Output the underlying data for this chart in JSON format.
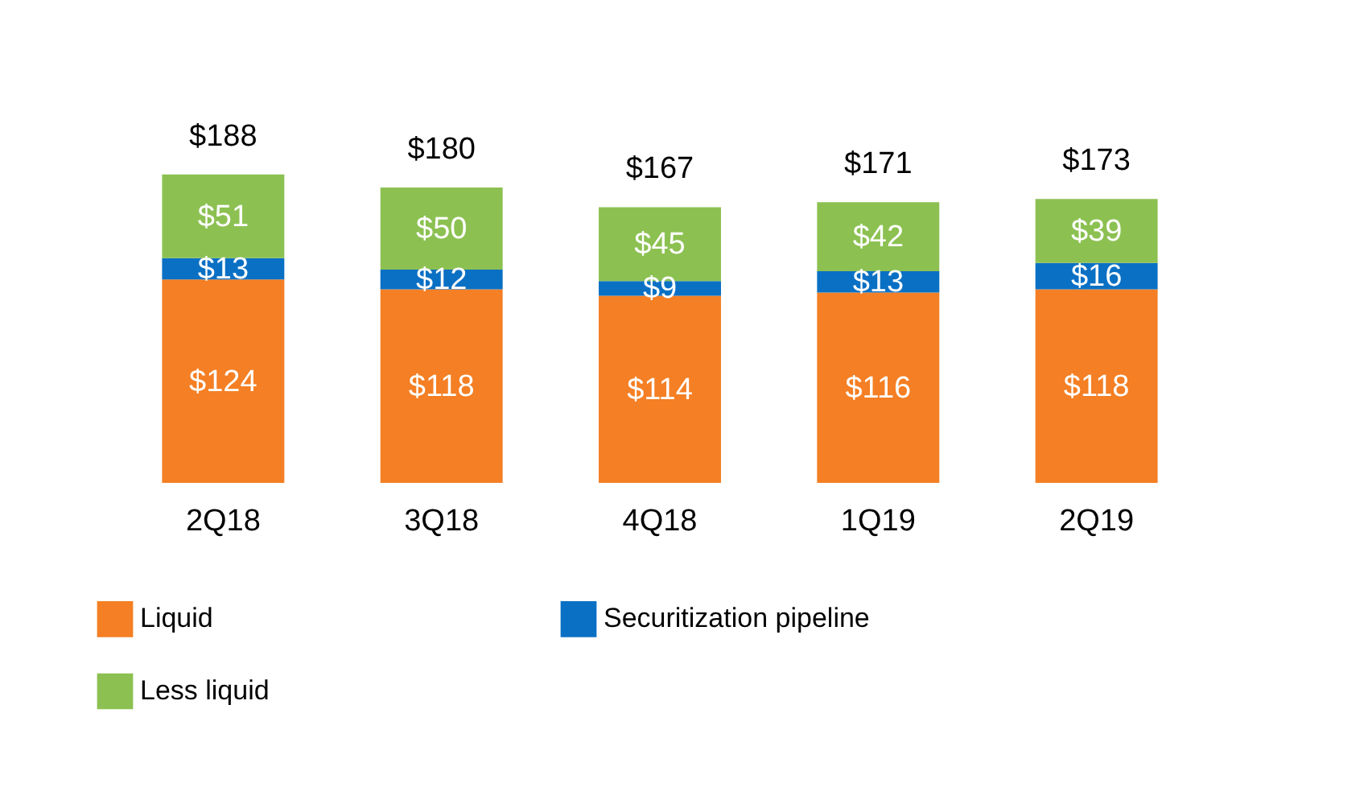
{
  "chart_data": {
    "type": "bar",
    "stacked": true,
    "categories": [
      "2Q18",
      "3Q18",
      "4Q18",
      "1Q19",
      "2Q19"
    ],
    "series": [
      {
        "name": "Liquid",
        "color": "#f47f24",
        "values": [
          124,
          118,
          114,
          116,
          118
        ],
        "value_labels": [
          "$124",
          "$118",
          "$114",
          "$116",
          "$118"
        ]
      },
      {
        "name": "Securitization pipeline",
        "color": "#0a70c4",
        "values": [
          13,
          12,
          9,
          13,
          16
        ],
        "value_labels": [
          "$13",
          "$12",
          "$9",
          "$13",
          "$16"
        ]
      },
      {
        "name": "Less liquid",
        "color": "#8cc152",
        "values": [
          51,
          50,
          45,
          42,
          39
        ],
        "value_labels": [
          "$51",
          "$50",
          "$45",
          "$42",
          "$39"
        ]
      }
    ],
    "totals": [
      "$188",
      "$180",
      "$167",
      "$171",
      "$173"
    ],
    "legend": "bottom",
    "grid": false
  }
}
